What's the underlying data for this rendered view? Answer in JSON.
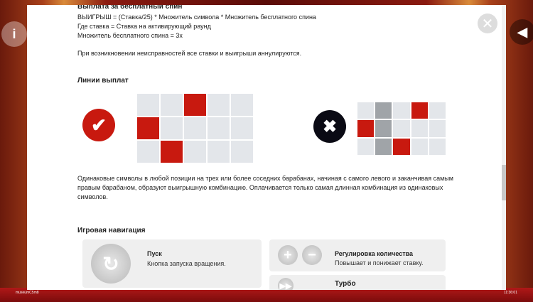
{
  "free_spin": {
    "title": "Выплата за бесплатный спин",
    "lines": [
      "ВЫИГРЫШ = (Ставка/25) * Множитель символа * Множитель бесплатного спина",
      "Где ставка = Ставка на активирующий раунд",
      "Множитель бесплатного спина = 3x"
    ],
    "malfunction": "При возникновении неисправностей все ставки и выигрыши аннулируются."
  },
  "paylines": {
    "title": "Линии выплат",
    "description": "Одинаковые символы в любой позиции на трех или более соседних барабанах, начиная с самого левого и заканчивая самым правым барабаном, образуют выигрышную комбинацию. Оплачивается только самая длинная комбинация из одинаковых символов.",
    "valid_grid": [
      [
        "",
        "",
        "r",
        "",
        ""
      ],
      [
        "r",
        "",
        "",
        "",
        ""
      ],
      [
        "",
        "r",
        "",
        "",
        ""
      ]
    ],
    "invalid_grid": [
      [
        "",
        "g",
        "",
        "r",
        ""
      ],
      [
        "r",
        "g",
        "",
        "",
        ""
      ],
      [
        "",
        "g",
        "r",
        "",
        ""
      ]
    ]
  },
  "navigation": {
    "title": "Игровая навигация",
    "items": [
      {
        "title": "Пуск",
        "desc": "Кнопка запуска вращения."
      },
      {
        "title": "Регулировка количества",
        "desc": "Повышает и понижает ставку."
      },
      {
        "title": "Турбо",
        "desc": ""
      }
    ]
  },
  "footer": {
    "user": "museumC5m8",
    "time": "11:36:01"
  },
  "colors": {
    "accent_red": "#c8190f",
    "dark": "#0a0a14"
  }
}
